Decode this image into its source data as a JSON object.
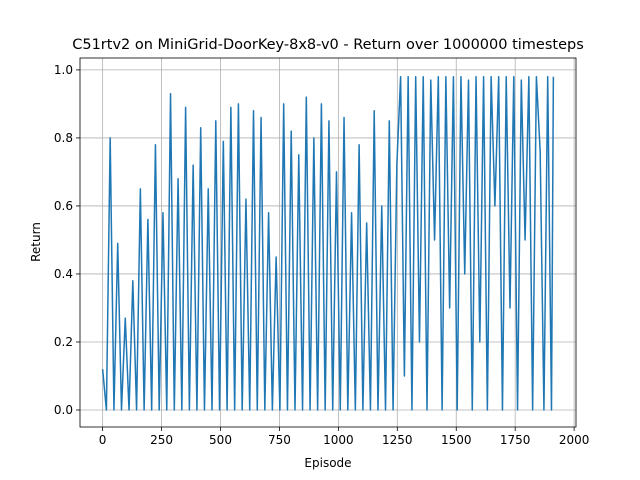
{
  "chart_data": {
    "type": "line",
    "title": "C51rtv2 on MiniGrid-DoorKey-8x8-v0 - Return over 1000000 timesteps",
    "x_label": "Episode",
    "y_label": "Return",
    "x": [
      0,
      16,
      32,
      48,
      64,
      80,
      96,
      112,
      128,
      144,
      160,
      176,
      192,
      208,
      224,
      240,
      256,
      272,
      288,
      304,
      320,
      336,
      352,
      368,
      384,
      400,
      416,
      432,
      448,
      464,
      480,
      496,
      512,
      528,
      544,
      560,
      576,
      592,
      608,
      624,
      640,
      656,
      672,
      688,
      704,
      720,
      736,
      752,
      768,
      784,
      800,
      816,
      832,
      848,
      864,
      880,
      896,
      912,
      928,
      944,
      960,
      976,
      992,
      1008,
      1024,
      1040,
      1056,
      1072,
      1088,
      1104,
      1120,
      1136,
      1152,
      1168,
      1184,
      1200,
      1216,
      1232,
      1248,
      1264,
      1280,
      1296,
      1312,
      1328,
      1344,
      1360,
      1376,
      1392,
      1408,
      1424,
      1440,
      1456,
      1472,
      1488,
      1504,
      1520,
      1536,
      1552,
      1568,
      1584,
      1600,
      1616,
      1632,
      1648,
      1664,
      1680,
      1696,
      1712,
      1728,
      1744,
      1760,
      1776,
      1792,
      1808,
      1824,
      1840,
      1856,
      1872,
      1888,
      1904,
      1912
    ],
    "series": [
      {
        "name": "Return",
        "color": "#1f77b4",
        "values": [
          0.12,
          0,
          0.8,
          0,
          0.49,
          0,
          0.27,
          0,
          0.38,
          0,
          0.65,
          0,
          0.56,
          0,
          0.78,
          0,
          0.58,
          0,
          0.93,
          0,
          0.68,
          0,
          0.89,
          0,
          0.72,
          0,
          0.83,
          0,
          0.65,
          0,
          0.85,
          0,
          0.79,
          0,
          0.89,
          0,
          0.9,
          0,
          0.62,
          0,
          0.88,
          0,
          0.86,
          0,
          0.58,
          0,
          0.45,
          0,
          0.9,
          0,
          0.82,
          0,
          0.75,
          0,
          0.92,
          0,
          0.8,
          0,
          0.9,
          0,
          0.85,
          0,
          0.7,
          0,
          0.86,
          0,
          0.58,
          0,
          0.78,
          0,
          0.55,
          0,
          0.88,
          0,
          0.6,
          0,
          0.85,
          0,
          0.72,
          0.98,
          0.1,
          0.98,
          0,
          0.98,
          0.2,
          0.98,
          0,
          0.97,
          0.5,
          0.98,
          0,
          0.98,
          0.3,
          0.98,
          0,
          0.98,
          0.4,
          0.97,
          0,
          0.98,
          0.2,
          0.98,
          0,
          0.98,
          0.6,
          0.98,
          0,
          0.98,
          0.3,
          0.98,
          0,
          0.97,
          0.5,
          0.98,
          0,
          0.98,
          0.76,
          0,
          0.98,
          0,
          0.98
        ]
      }
    ],
    "xlim": [
      -96,
      2008
    ],
    "ylim": [
      -0.05,
      1.035
    ],
    "xticks": [
      0,
      250,
      500,
      750,
      1000,
      1250,
      1500,
      1750,
      2000
    ],
    "yticks": [
      {
        "value": 0,
        "label": "0.0"
      },
      {
        "value": 0.2,
        "label": "0.2"
      },
      {
        "value": 0.4,
        "label": "0.4"
      },
      {
        "value": 0.6,
        "label": "0.6"
      },
      {
        "value": 0.8,
        "label": "0.8"
      },
      {
        "value": 1,
        "label": "1.0"
      }
    ],
    "grid": true
  }
}
